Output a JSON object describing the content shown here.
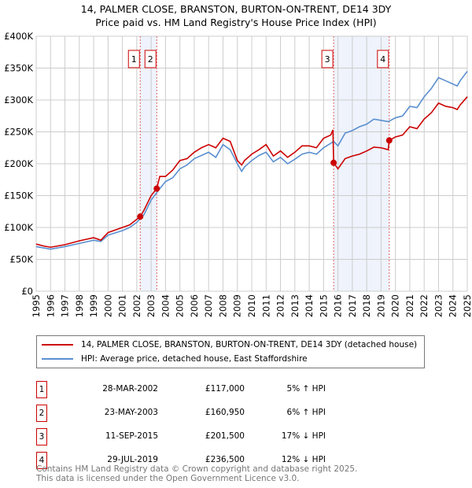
{
  "chart_data": {
    "type": "line",
    "title": "14, PALMER CLOSE, BRANSTON, BURTON-ON-TRENT, DE14 3DY",
    "subtitle": "Price paid vs. HM Land Registry's House Price Index (HPI)",
    "xlim": [
      1995,
      2025
    ],
    "ylim": [
      0,
      400000
    ],
    "yticks": [
      0,
      50000,
      100000,
      150000,
      200000,
      250000,
      300000,
      350000,
      400000
    ],
    "ytick_labels": [
      "£0",
      "£50K",
      "£100K",
      "£150K",
      "£200K",
      "£250K",
      "£300K",
      "£350K",
      "£400K"
    ],
    "xticks": [
      "1995",
      "1996",
      "1997",
      "1998",
      "1999",
      "2000",
      "2001",
      "2002",
      "2003",
      "2004",
      "2005",
      "2006",
      "2007",
      "2008",
      "2009",
      "2010",
      "2011",
      "2012",
      "2013",
      "2014",
      "2015",
      "2016",
      "2017",
      "2018",
      "2019",
      "2020",
      "2021",
      "2022",
      "2023",
      "2024",
      "2025"
    ],
    "grid": true,
    "shaded_ranges": [
      [
        2002.24,
        2003.39
      ],
      [
        2015.7,
        2019.57
      ]
    ],
    "series": [
      {
        "name": "14, PALMER CLOSE, BRANSTON, BURTON-ON-TRENT, DE14 3DY (detached house)",
        "color": "#cc0000",
        "x": [
          1995,
          1995.5,
          1996,
          1997,
          1998,
          1999,
          1999.5,
          2000,
          2001,
          2001.5,
          2002.24,
          2002.5,
          2003,
          2003.39,
          2003.6,
          2004,
          2004.5,
          2005,
          2005.5,
          2006,
          2006.5,
          2007,
          2007.5,
          2008,
          2008.5,
          2009,
          2009.3,
          2009.5,
          2010,
          2010.5,
          2011,
          2011.5,
          2012,
          2012.5,
          2013,
          2013.5,
          2014,
          2014.5,
          2015,
          2015.5,
          2015.65,
          2015.7,
          2016,
          2016.5,
          2017,
          2017.5,
          2018,
          2018.5,
          2019,
          2019.5,
          2019.57,
          2020,
          2020.5,
          2021,
          2021.5,
          2022,
          2022.5,
          2023,
          2023.5,
          2024,
          2024.3,
          2024.5,
          2025
        ],
        "y": [
          74000,
          71000,
          69000,
          73000,
          79000,
          84000,
          80000,
          92000,
          100000,
          104000,
          117000,
          127000,
          150000,
          160950,
          180000,
          180000,
          190000,
          205000,
          208000,
          218000,
          225000,
          230000,
          225000,
          240000,
          235000,
          205000,
          198000,
          205000,
          215000,
          222000,
          230000,
          212000,
          220000,
          210000,
          218000,
          228000,
          228000,
          225000,
          240000,
          245000,
          253000,
          201500,
          192000,
          208000,
          212000,
          215000,
          220000,
          226000,
          225000,
          222000,
          236500,
          242000,
          245000,
          258000,
          255000,
          270000,
          280000,
          295000,
          290000,
          288000,
          285000,
          292000,
          305000
        ]
      },
      {
        "name": "HPI: Average price, detached house, East Staffordshire",
        "color": "#5b8fd0",
        "x": [
          1995,
          1995.5,
          1996,
          1997,
          1998,
          1999,
          1999.5,
          2000,
          2001,
          2001.5,
          2002,
          2002.5,
          2003,
          2003.5,
          2004,
          2004.5,
          2005,
          2005.5,
          2006,
          2006.5,
          2007,
          2007.5,
          2008,
          2008.5,
          2009,
          2009.3,
          2009.5,
          2010,
          2010.5,
          2011,
          2011.5,
          2012,
          2012.5,
          2013,
          2013.5,
          2014,
          2014.5,
          2015,
          2015.5,
          2015.7,
          2016,
          2016.5,
          2017,
          2017.5,
          2018,
          2018.5,
          2019,
          2019.5,
          2020,
          2020.5,
          2021,
          2021.5,
          2022,
          2022.5,
          2023,
          2023.5,
          2024,
          2024.3,
          2024.5,
          2025
        ],
        "y": [
          70000,
          68000,
          66000,
          70000,
          75000,
          80000,
          78000,
          88000,
          95000,
          100000,
          108000,
          120000,
          143000,
          158000,
          172000,
          178000,
          192000,
          198000,
          208000,
          213000,
          218000,
          210000,
          230000,
          222000,
          200000,
          188000,
          195000,
          205000,
          213000,
          218000,
          203000,
          210000,
          200000,
          207000,
          215000,
          218000,
          215000,
          225000,
          232000,
          235000,
          228000,
          248000,
          252000,
          258000,
          262000,
          270000,
          268000,
          266000,
          272000,
          275000,
          290000,
          288000,
          305000,
          318000,
          335000,
          330000,
          325000,
          322000,
          330000,
          345000
        ]
      }
    ],
    "sales": [
      {
        "label": "1",
        "x": 2002.24,
        "y": 117000,
        "date": "28-MAR-2002",
        "price": "£117,000",
        "hpi": "5% ↑ HPI"
      },
      {
        "label": "2",
        "x": 2003.39,
        "y": 160950,
        "date": "23-MAY-2003",
        "price": "£160,950",
        "hpi": "6% ↑ HPI"
      },
      {
        "label": "3",
        "x": 2015.7,
        "y": 201500,
        "date": "11-SEP-2015",
        "price": "£201,500",
        "hpi": "17% ↓ HPI"
      },
      {
        "label": "4",
        "x": 2019.57,
        "y": 236500,
        "date": "29-JUL-2019",
        "price": "£236,500",
        "hpi": "12% ↓ HPI"
      }
    ]
  },
  "footer": {
    "line1": "Contains HM Land Registry data © Crown copyright and database right 2025.",
    "line2": "This data is licensed under the Open Government Licence v3.0."
  }
}
